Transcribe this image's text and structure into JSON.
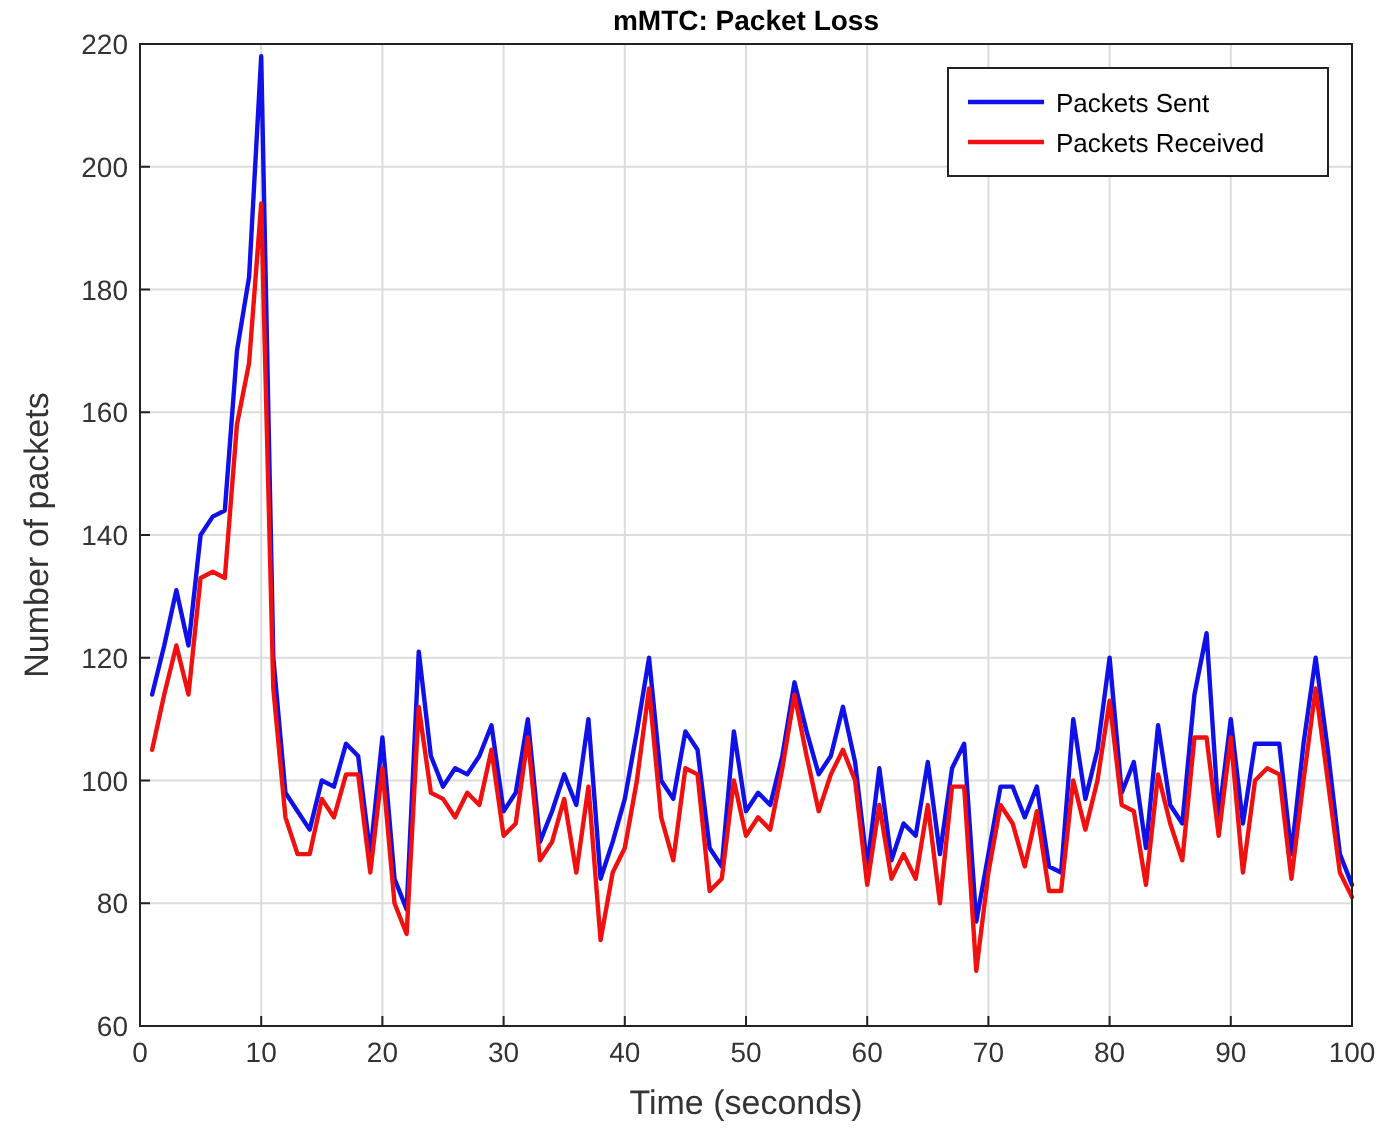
{
  "chart_data": {
    "type": "line",
    "title": "mMTC: Packet Loss",
    "xlabel": "Time (seconds)",
    "ylabel": "Number of packets",
    "x": [
      1,
      2,
      3,
      4,
      5,
      6,
      7,
      8,
      9,
      10,
      11,
      12,
      13,
      14,
      15,
      16,
      17,
      18,
      19,
      20,
      21,
      22,
      23,
      24,
      25,
      26,
      27,
      28,
      29,
      30,
      31,
      32,
      33,
      34,
      35,
      36,
      37,
      38,
      39,
      40,
      41,
      42,
      43,
      44,
      45,
      46,
      47,
      48,
      49,
      50,
      51,
      52,
      53,
      54,
      55,
      56,
      57,
      58,
      59,
      60,
      61,
      62,
      63,
      64,
      65,
      66,
      67,
      68,
      69,
      70,
      71,
      72,
      73,
      74,
      75,
      76,
      77,
      78,
      79,
      80,
      81,
      82,
      83,
      84,
      85,
      86,
      87,
      88,
      89,
      90,
      91,
      92,
      93,
      94,
      95,
      96,
      97,
      98,
      99,
      100
    ],
    "series": [
      {
        "name": "Packets Sent",
        "color": "#1010e8",
        "values": [
          114,
          122,
          131,
          122,
          140,
          143,
          144,
          170,
          182,
          218,
          120,
          98,
          95,
          92,
          100,
          99,
          106,
          104,
          88,
          107,
          84,
          79,
          121,
          104,
          99,
          102,
          101,
          104,
          109,
          95,
          98,
          110,
          90,
          95,
          101,
          96,
          110,
          84,
          90,
          97,
          108,
          120,
          100,
          97,
          108,
          105,
          89,
          86,
          108,
          95,
          98,
          96,
          104,
          116,
          108,
          101,
          104,
          112,
          103,
          86,
          102,
          87,
          93,
          91,
          103,
          88,
          102,
          106,
          77,
          88,
          99,
          99,
          94,
          99,
          86,
          85,
          110,
          97,
          105,
          120,
          98,
          103,
          89,
          109,
          96,
          93,
          114,
          124,
          94,
          110,
          93,
          106,
          106,
          106,
          88,
          106,
          120,
          105,
          88,
          83
        ]
      },
      {
        "name": "Packets Received",
        "color": "#f01010",
        "values": [
          105,
          114,
          122,
          114,
          133,
          134,
          133,
          158,
          168,
          194,
          115,
          94,
          88,
          88,
          97,
          94,
          101,
          101,
          85,
          102,
          80,
          75,
          112,
          98,
          97,
          94,
          98,
          96,
          105,
          91,
          93,
          107,
          87,
          90,
          97,
          85,
          99,
          74,
          85,
          89,
          100,
          115,
          94,
          87,
          102,
          101,
          82,
          84,
          100,
          91,
          94,
          92,
          102,
          114,
          104,
          95,
          101,
          105,
          100,
          83,
          96,
          84,
          88,
          84,
          96,
          80,
          99,
          99,
          69,
          85,
          96,
          93,
          86,
          95,
          82,
          82,
          100,
          92,
          100,
          113,
          96,
          95,
          83,
          101,
          93,
          87,
          107,
          107,
          91,
          107,
          85,
          100,
          102,
          101,
          84,
          100,
          115,
          100,
          85,
          81
        ]
      }
    ],
    "xlim": [
      0,
      100
    ],
    "xticks": [
      0,
      10,
      20,
      30,
      40,
      50,
      60,
      70,
      80,
      90,
      100
    ],
    "ylim": [
      60,
      220
    ],
    "yticks": [
      60,
      80,
      100,
      120,
      140,
      160,
      180,
      200,
      220
    ],
    "grid": true,
    "legend": "top right",
    "line_style": "solid",
    "marker": "none"
  }
}
